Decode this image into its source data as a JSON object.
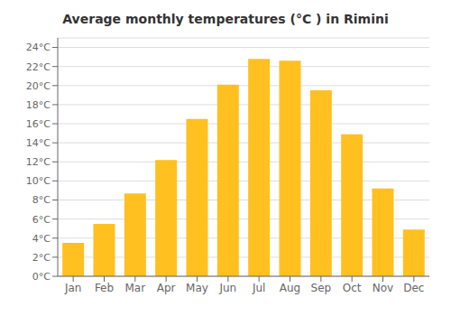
{
  "chart_data": {
    "type": "bar",
    "title": "Average monthly temperatures (°C ) in Rimini",
    "categories": [
      "Jan",
      "Feb",
      "Mar",
      "Apr",
      "May",
      "Jun",
      "Jul",
      "Aug",
      "Sep",
      "Oct",
      "Nov",
      "Dec"
    ],
    "values": [
      3.5,
      5.5,
      8.7,
      12.2,
      16.5,
      20.1,
      22.8,
      22.6,
      19.5,
      14.9,
      9.2,
      4.9
    ],
    "color": "#FFC020",
    "ylim": [
      0,
      25
    ],
    "yticks": [
      {
        "value": 0,
        "label": "0°C"
      },
      {
        "value": 2,
        "label": "2°C"
      },
      {
        "value": 4,
        "label": "4°C"
      },
      {
        "value": 6,
        "label": "6°C"
      },
      {
        "value": 8,
        "label": "8°C"
      },
      {
        "value": 10,
        "label": "10°C"
      },
      {
        "value": 12,
        "label": "12°C"
      },
      {
        "value": 14,
        "label": "14°C"
      },
      {
        "value": 16,
        "label": "16°C"
      },
      {
        "value": 18,
        "label": "18°C"
      },
      {
        "value": 20,
        "label": "20°C"
      },
      {
        "value": 22,
        "label": "22°C"
      },
      {
        "value": 24,
        "label": "24°C"
      }
    ],
    "grid": true
  }
}
